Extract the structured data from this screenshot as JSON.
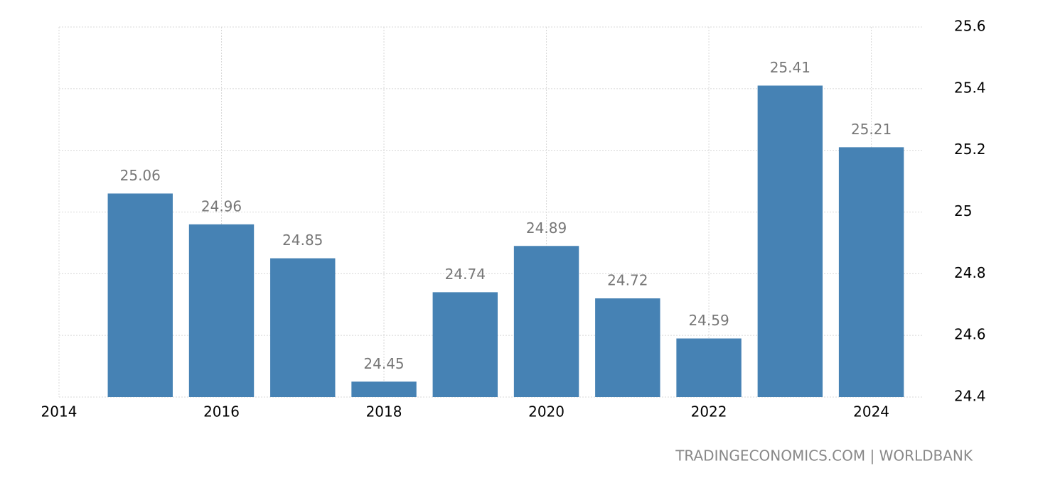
{
  "chart_data": {
    "type": "bar",
    "x": [
      2015,
      2016,
      2017,
      2018,
      2019,
      2020,
      2021,
      2022,
      2023,
      2024
    ],
    "values": [
      25.06,
      24.96,
      24.85,
      24.45,
      24.74,
      24.89,
      24.72,
      24.59,
      25.41,
      25.21
    ],
    "color": "#4682b4",
    "xlim": [
      2014,
      2024.625
    ],
    "xticks": [
      2014,
      2016,
      2018,
      2020,
      2022,
      2024
    ],
    "ylim": [
      24.4,
      25.6
    ],
    "yticks": [
      24.4,
      24.6,
      24.8,
      25,
      25.2,
      25.4,
      25.6
    ],
    "grid": true,
    "source": "TRADINGECONOMICS.COM | WORLDBANK"
  }
}
